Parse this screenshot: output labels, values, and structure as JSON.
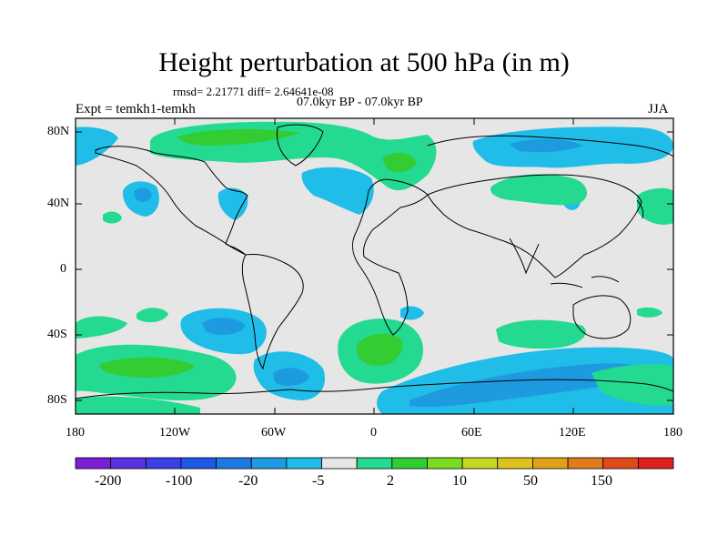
{
  "header": {
    "title": "Height perturbation at 500 hPa (in m)",
    "stats": "rmsd= 2.21771 diff= 2.64641e-08",
    "period": "07.0kyr BP - 07.0kyr BP",
    "experiment": "Expt = temkh1-temkh",
    "season": "JJA"
  },
  "axes": {
    "lat_labels": [
      "80N",
      "40N",
      "0",
      "40S",
      "80S"
    ],
    "lon_labels": [
      "180",
      "120W",
      "60W",
      "0",
      "60E",
      "120E",
      "180"
    ]
  },
  "colorbar": {
    "labels": [
      "-200",
      "-100",
      "-20",
      "-5",
      "2",
      "10",
      "50",
      "150"
    ],
    "colors": [
      "#7a1fd6",
      "#5a32e0",
      "#3a3fe6",
      "#1f58e6",
      "#1f78e0",
      "#1e9ae0",
      "#1fbde8",
      "#e6e6e6",
      "#24d990",
      "#33cc33",
      "#7adb1f",
      "#c2d91f",
      "#dcc21a",
      "#e0a01a",
      "#e07a1a",
      "#e04a1a",
      "#e01f1f"
    ]
  },
  "colors": {
    "background_field": "#e6e6e6",
    "negative_light": "#1fbde8",
    "negative_medium": "#1e9ae0",
    "positive_light": "#24d990",
    "positive_medium": "#33cc33"
  }
}
